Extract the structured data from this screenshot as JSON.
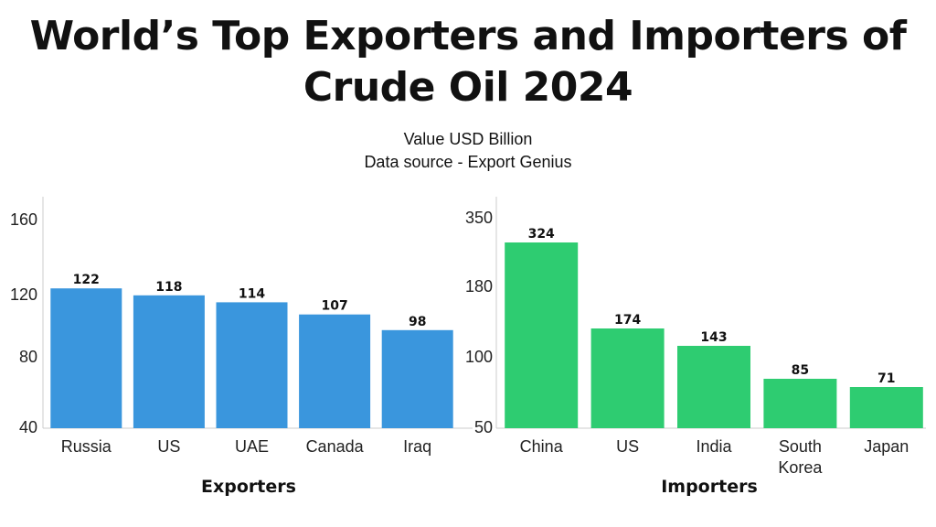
{
  "title_line1": "World’s Top Exporters and Importers of",
  "title_line2": "Crude Oil 2024",
  "subtitle_line1": "Value USD Billion",
  "subtitle_line2": "Data source - Export Genius",
  "colors": {
    "exporters": "#3a96dd",
    "importers": "#2ecc71",
    "axis": "#cccccc"
  },
  "chart_data": [
    {
      "type": "bar",
      "xlabel": "Exporters",
      "ylabel": "",
      "categories": [
        [
          "Russia"
        ],
        [
          "US"
        ],
        [
          "UAE"
        ],
        [
          "Canada"
        ],
        [
          "Iraq"
        ]
      ],
      "values": [
        122,
        118,
        114,
        107,
        98
      ],
      "yticks": [
        "40",
        "80",
        "120",
        "160"
      ],
      "grid": false
    },
    {
      "type": "bar",
      "xlabel": "Importers",
      "ylabel": "",
      "categories": [
        [
          "China"
        ],
        [
          "US"
        ],
        [
          "India"
        ],
        [
          "South",
          "Korea"
        ],
        [
          "Japan"
        ]
      ],
      "values": [
        324,
        174,
        143,
        85,
        71
      ],
      "yticks": [
        "50",
        "100",
        "180",
        "350"
      ],
      "grid": false
    }
  ]
}
